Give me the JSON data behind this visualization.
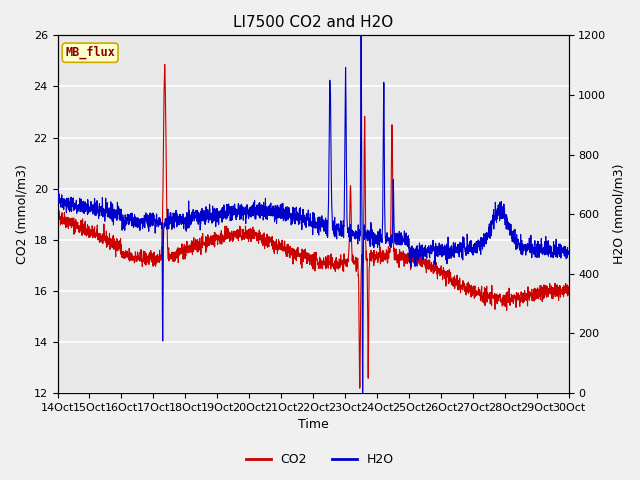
{
  "title": "LI7500 CO2 and H2O",
  "xlabel": "Time",
  "ylabel_left": "CO2 (mmol/m3)",
  "ylabel_right": "H2O (mmol/m3)",
  "xlim": [
    0,
    16
  ],
  "ylim_left": [
    12,
    26
  ],
  "ylim_right": [
    0,
    1200
  ],
  "yticks_left": [
    12,
    14,
    16,
    18,
    20,
    22,
    24,
    26
  ],
  "yticks_right": [
    0,
    200,
    400,
    600,
    800,
    1000,
    1200
  ],
  "co2_color": "#cc0000",
  "h2o_color": "#0000cc",
  "legend_box_facecolor": "#ffffcc",
  "legend_box_edgecolor": "#ccaa00",
  "legend_label": "MB_flux",
  "legend_label_color": "#880000",
  "plot_bg_color": "#e8e8e8",
  "fig_bg_color": "#f0f0f0",
  "grid_color": "#ffffff",
  "line_width": 0.8,
  "title_fontsize": 11,
  "axis_fontsize": 9,
  "tick_fontsize": 8
}
